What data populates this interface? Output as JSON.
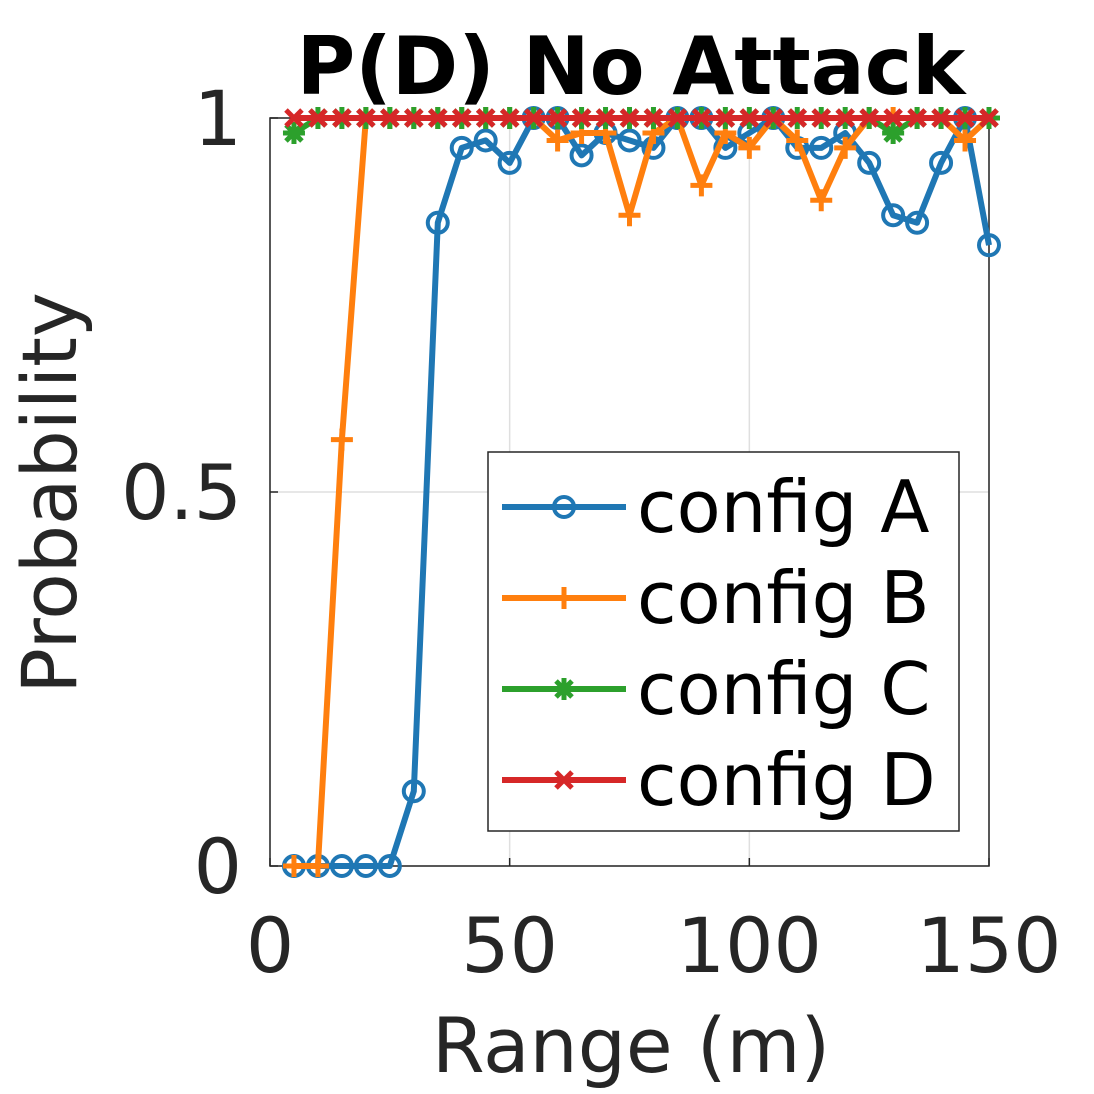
{
  "chart_data": {
    "type": "line",
    "title": "P(D) No Attack",
    "xlabel": "Range (m)",
    "ylabel": "Probability",
    "xlim": [
      0,
      150
    ],
    "ylim": [
      0,
      1
    ],
    "xticks": [
      0,
      50,
      100,
      150
    ],
    "xtick_labels": [
      "0",
      "50",
      "100",
      "150"
    ],
    "yticks": [
      0,
      0.5,
      1
    ],
    "ytick_labels": [
      "0",
      "0.5",
      "1"
    ],
    "grid": true,
    "legend_position": "bottom-right",
    "x": [
      5,
      10,
      15,
      20,
      25,
      30,
      35,
      40,
      45,
      50,
      55,
      60,
      65,
      70,
      75,
      80,
      85,
      90,
      95,
      100,
      105,
      110,
      115,
      120,
      125,
      130,
      135,
      140,
      145,
      150
    ],
    "series": [
      {
        "name": "config A",
        "color": "#1f77b4",
        "marker": "circle",
        "values": [
          0,
          0,
          0,
          0,
          0,
          0.1,
          0.86,
          0.96,
          0.97,
          0.94,
          1.0,
          1.0,
          0.95,
          0.98,
          0.97,
          0.96,
          1.0,
          1.0,
          0.96,
          0.98,
          1.0,
          0.96,
          0.96,
          0.98,
          0.94,
          0.87,
          0.86,
          0.94,
          1.0,
          0.83
        ]
      },
      {
        "name": "config B",
        "color": "#ff7f0e",
        "marker": "plus",
        "values": [
          0,
          0,
          0.57,
          1.0,
          1.0,
          1.0,
          1.0,
          1.0,
          1.0,
          1.0,
          1.0,
          0.97,
          0.98,
          0.98,
          0.87,
          0.98,
          1.0,
          0.91,
          0.98,
          0.96,
          1.0,
          0.97,
          0.89,
          0.96,
          1.0,
          1.0,
          1.0,
          1.0,
          0.97,
          1.0
        ]
      },
      {
        "name": "config C",
        "color": "#2ca02c",
        "marker": "asterisk",
        "values": [
          0.98,
          1.0,
          1.0,
          1.0,
          1.0,
          1.0,
          1.0,
          1.0,
          1.0,
          1.0,
          1.0,
          1.0,
          1.0,
          1.0,
          1.0,
          1.0,
          1.0,
          1.0,
          1.0,
          1.0,
          1.0,
          1.0,
          1.0,
          1.0,
          1.0,
          0.98,
          1.0,
          1.0,
          1.0,
          1.0
        ]
      },
      {
        "name": "config D",
        "color": "#d62728",
        "marker": "x",
        "values": [
          1.0,
          1.0,
          1.0,
          1.0,
          1.0,
          1.0,
          1.0,
          1.0,
          1.0,
          1.0,
          1.0,
          1.0,
          1.0,
          1.0,
          1.0,
          1.0,
          1.0,
          1.0,
          1.0,
          1.0,
          1.0,
          1.0,
          1.0,
          1.0,
          1.0,
          1.0,
          1.0,
          1.0,
          1.0,
          1.0
        ]
      }
    ]
  }
}
